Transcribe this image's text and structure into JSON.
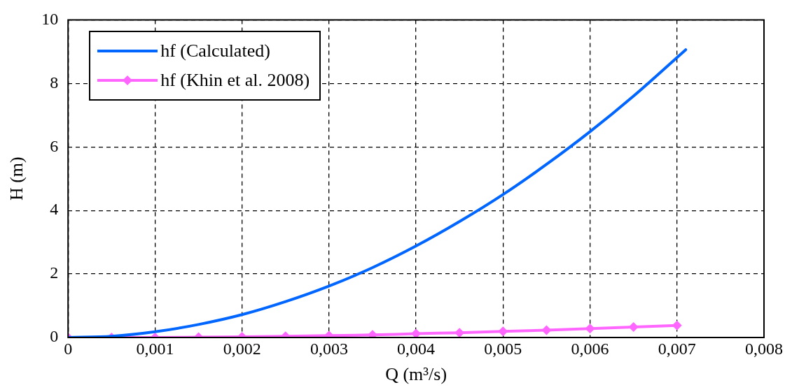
{
  "chart_data": {
    "type": "line",
    "xlabel": "Q (m³/s)",
    "ylabel": "H (m)",
    "xlim": [
      0,
      0.008
    ],
    "xticks": [
      {
        "value": 0,
        "label": "0"
      },
      {
        "value": 0.001,
        "label": "0,001"
      },
      {
        "value": 0.002,
        "label": "0,002"
      },
      {
        "value": 0.003,
        "label": "0,003"
      },
      {
        "value": 0.004,
        "label": "0,004"
      },
      {
        "value": 0.005,
        "label": "0,005"
      },
      {
        "value": 0.006,
        "label": "0,006"
      },
      {
        "value": 0.007,
        "label": "0,007"
      },
      {
        "value": 0.008,
        "label": "0,008"
      }
    ],
    "ylim": [
      0,
      10
    ],
    "yticks": [
      0,
      2,
      4,
      6,
      8,
      10
    ],
    "grid": true,
    "legend": "top left",
    "line_style": "solid",
    "series": [
      {
        "name": "hf (Calculated)",
        "color": "#0066ff",
        "marker": "none",
        "x": [
          0,
          0.0005,
          0.001,
          0.0015,
          0.002,
          0.0025,
          0.003,
          0.0035,
          0.004,
          0.0045,
          0.005,
          0.0055,
          0.006,
          0.0065,
          0.0071
        ],
        "values": [
          0,
          0.04,
          0.18,
          0.41,
          0.72,
          1.13,
          1.62,
          2.2,
          2.88,
          3.65,
          4.5,
          5.45,
          6.48,
          7.6,
          9.06
        ]
      },
      {
        "name": "hf (Khin et al. 2008)",
        "color": "#ff66ff",
        "marker": "diamond",
        "x": [
          0,
          0.0005,
          0.001,
          0.0015,
          0.002,
          0.0025,
          0.003,
          0.0035,
          0.004,
          0.0045,
          0.005,
          0.0055,
          0.006,
          0.0065,
          0.007
        ],
        "values": [
          0,
          0,
          0,
          0.01,
          0.02,
          0.04,
          0.06,
          0.08,
          0.12,
          0.15,
          0.19,
          0.23,
          0.28,
          0.33,
          0.38
        ]
      }
    ]
  }
}
